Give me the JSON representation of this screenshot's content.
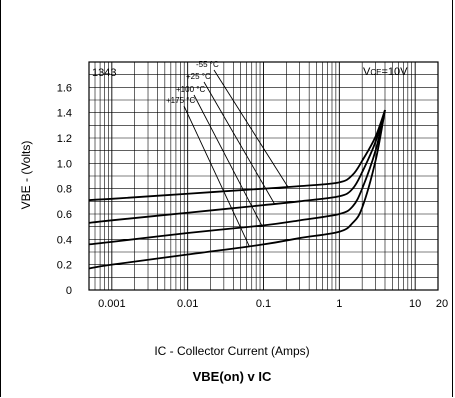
{
  "chart_data": {
    "type": "line",
    "title": "VBE(on) v IC",
    "xlabel": "IC - Collector Current (Amps)",
    "ylabel": "VBE - (Volts)",
    "x_scale": "log",
    "xlim": [
      0.0005,
      20
    ],
    "ylim": [
      0,
      1.8
    ],
    "grid": true,
    "x_ticks": [
      {
        "value": 0.001,
        "label": "0.001"
      },
      {
        "value": 0.01,
        "label": "0.01"
      },
      {
        "value": 0.1,
        "label": "0.1"
      },
      {
        "value": 1,
        "label": "1"
      },
      {
        "value": 10,
        "label": "10"
      },
      {
        "value": 20,
        "label": "20"
      }
    ],
    "y_ticks": [
      {
        "value": 0,
        "label": "0"
      },
      {
        "value": 0.2,
        "label": "0.2"
      },
      {
        "value": 0.4,
        "label": "0.4"
      },
      {
        "value": 0.6,
        "label": "0.6"
      },
      {
        "value": 0.8,
        "label": "0.8"
      },
      {
        "value": 1.0,
        "label": "1.0"
      },
      {
        "value": 1.2,
        "label": "1.2"
      },
      {
        "value": 1.4,
        "label": "1.4"
      },
      {
        "value": 1.6,
        "label": "1.6"
      }
    ],
    "part_number": "1343",
    "condition": {
      "prefix": "V",
      "sub": "CE",
      "value": "=10V"
    },
    "series": [
      {
        "name": "-55 °C",
        "x": [
          0.0005,
          0.001,
          0.01,
          0.1,
          0.3,
          1,
          1.5,
          2,
          3,
          4
        ],
        "y": [
          0.71,
          0.72,
          0.76,
          0.8,
          0.82,
          0.85,
          0.91,
          1.02,
          1.21,
          1.42
        ]
      },
      {
        "name": "+25 °C",
        "x": [
          0.0005,
          0.001,
          0.01,
          0.1,
          0.3,
          1,
          1.5,
          2,
          3,
          4
        ],
        "y": [
          0.53,
          0.55,
          0.61,
          0.67,
          0.7,
          0.74,
          0.8,
          0.93,
          1.17,
          1.42
        ]
      },
      {
        "name": "+100 °C",
        "x": [
          0.0005,
          0.001,
          0.01,
          0.1,
          0.3,
          1,
          1.5,
          2,
          3,
          4
        ],
        "y": [
          0.36,
          0.38,
          0.45,
          0.51,
          0.55,
          0.6,
          0.66,
          0.8,
          1.1,
          1.42
        ]
      },
      {
        "name": "+175 °C",
        "x": [
          0.0005,
          0.001,
          0.01,
          0.1,
          0.3,
          1,
          1.5,
          2,
          3,
          4
        ],
        "y": [
          0.17,
          0.2,
          0.28,
          0.36,
          0.41,
          0.46,
          0.53,
          0.65,
          1.02,
          1.42
        ]
      }
    ]
  }
}
